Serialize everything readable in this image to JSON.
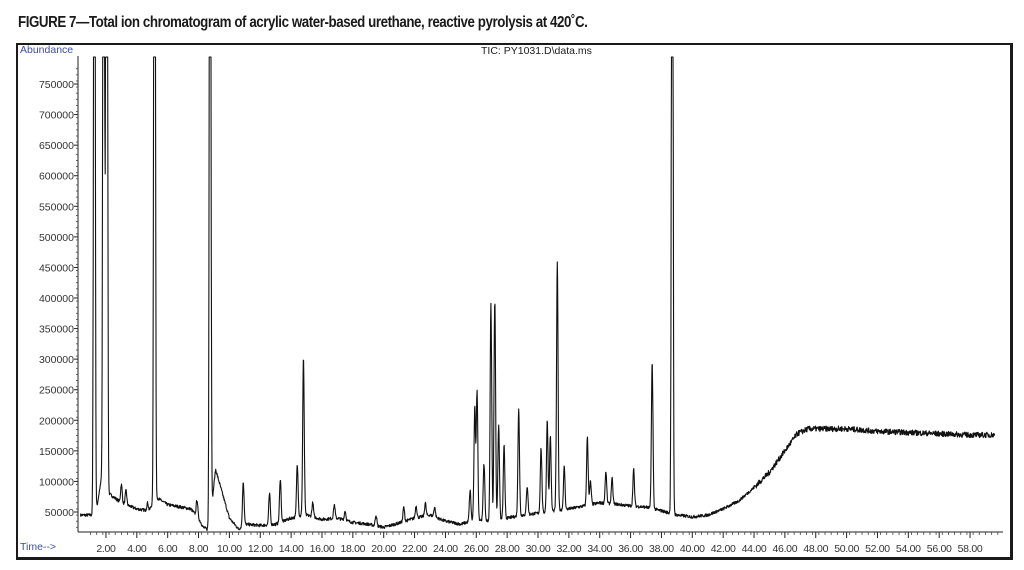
{
  "caption": "FIGURE 7—Total ion chromatogram of acrylic water-based urethane, reactive pyrolysis at 420˚C.",
  "chart_data": {
    "type": "line",
    "title": "TIC: PY1031.D\\data.ms",
    "xlabel": "Time-->",
    "ylabel": "Abundance",
    "xlim": [
      0.0,
      60.0
    ],
    "ylim": [
      20000,
      790000
    ],
    "grid": false,
    "x_ticks": [
      "2.00",
      "4.00",
      "6.00",
      "8.00",
      "10.00",
      "12.00",
      "14.00",
      "16.00",
      "18.00",
      "20.00",
      "22.00",
      "24.00",
      "26.00",
      "28.00",
      "30.00",
      "32.00",
      "34.00",
      "36.00",
      "38.00",
      "40.00",
      "42.00",
      "44.00",
      "46.00",
      "48.00",
      "50.00",
      "52.00",
      "54.00",
      "56.00",
      "58.00"
    ],
    "y_ticks": [
      "50000",
      "100000",
      "150000",
      "200000",
      "250000",
      "300000",
      "350000",
      "400000",
      "450000",
      "500000",
      "550000",
      "600000",
      "650000",
      "700000",
      "750000"
    ],
    "baseline": [
      [
        1.2,
        45000
      ],
      [
        1.3,
        40000
      ],
      [
        1.8,
        120000
      ],
      [
        2.2,
        80000
      ],
      [
        3.0,
        65000
      ],
      [
        4.0,
        55000
      ],
      [
        4.8,
        52000
      ],
      [
        5.2,
        75000
      ],
      [
        6.0,
        62000
      ],
      [
        7.5,
        55000
      ],
      [
        8.0,
        40000
      ],
      [
        8.3,
        25000
      ],
      [
        8.7,
        20000
      ],
      [
        9.1,
        120000
      ],
      [
        10.0,
        40000
      ],
      [
        10.6,
        22000
      ],
      [
        11.0,
        30000
      ],
      [
        12.0,
        28000
      ],
      [
        13.0,
        30000
      ],
      [
        14.0,
        40000
      ],
      [
        15.0,
        45000
      ],
      [
        16.0,
        38000
      ],
      [
        17.0,
        40000
      ],
      [
        18.0,
        33000
      ],
      [
        19.0,
        30000
      ],
      [
        20.0,
        25000
      ],
      [
        21.0,
        32000
      ],
      [
        22.0,
        40000
      ],
      [
        23.0,
        45000
      ],
      [
        24.0,
        35000
      ],
      [
        25.0,
        30000
      ],
      [
        26.0,
        38000
      ],
      [
        27.0,
        35000
      ],
      [
        28.0,
        40000
      ],
      [
        29.0,
        45000
      ],
      [
        30.0,
        48000
      ],
      [
        31.0,
        52000
      ],
      [
        32.0,
        55000
      ],
      [
        33.0,
        60000
      ],
      [
        34.0,
        65000
      ],
      [
        35.0,
        63000
      ],
      [
        36.0,
        60000
      ],
      [
        37.0,
        58000
      ],
      [
        38.0,
        52000
      ],
      [
        39.0,
        45000
      ],
      [
        40.0,
        42000
      ],
      [
        41.0,
        45000
      ],
      [
        42.0,
        55000
      ],
      [
        43.0,
        68000
      ],
      [
        44.0,
        90000
      ],
      [
        45.0,
        115000
      ],
      [
        46.0,
        150000
      ],
      [
        46.8,
        178000
      ],
      [
        47.5,
        186000
      ],
      [
        50.0,
        186000
      ],
      [
        52.0,
        182000
      ],
      [
        54.0,
        180000
      ],
      [
        56.0,
        178000
      ],
      [
        58.0,
        176000
      ],
      [
        59.5,
        176000
      ]
    ],
    "peaks": [
      {
        "t": 1.25,
        "y": 790000,
        "label": "off-scale"
      },
      {
        "t": 1.85,
        "y": 790000,
        "label": "off-scale"
      },
      {
        "t": 2.05,
        "y": 790000,
        "label": "off-scale"
      },
      {
        "t": 2.0,
        "y": 360000
      },
      {
        "t": 3.0,
        "y": 95000
      },
      {
        "t": 3.3,
        "y": 85000
      },
      {
        "t": 4.7,
        "y": 65000
      },
      {
        "t": 5.15,
        "y": 790000,
        "label": "off-scale"
      },
      {
        "t": 7.9,
        "y": 70000
      },
      {
        "t": 8.75,
        "y": 790000,
        "label": "off-scale"
      },
      {
        "t": 10.9,
        "y": 100000
      },
      {
        "t": 12.6,
        "y": 80000
      },
      {
        "t": 13.3,
        "y": 105000
      },
      {
        "t": 14.4,
        "y": 128000
      },
      {
        "t": 14.8,
        "y": 303000
      },
      {
        "t": 15.4,
        "y": 65000
      },
      {
        "t": 16.8,
        "y": 62000
      },
      {
        "t": 17.5,
        "y": 52000
      },
      {
        "t": 19.5,
        "y": 45000
      },
      {
        "t": 21.3,
        "y": 58000
      },
      {
        "t": 22.1,
        "y": 60000
      },
      {
        "t": 22.7,
        "y": 65000
      },
      {
        "t": 23.3,
        "y": 58000
      },
      {
        "t": 25.6,
        "y": 85000
      },
      {
        "t": 25.9,
        "y": 220000
      },
      {
        "t": 26.05,
        "y": 245000
      },
      {
        "t": 26.5,
        "y": 130000
      },
      {
        "t": 26.95,
        "y": 390000
      },
      {
        "t": 27.2,
        "y": 395000
      },
      {
        "t": 27.45,
        "y": 190000
      },
      {
        "t": 27.8,
        "y": 160000
      },
      {
        "t": 28.75,
        "y": 220000
      },
      {
        "t": 29.3,
        "y": 92000
      },
      {
        "t": 30.2,
        "y": 155000
      },
      {
        "t": 30.6,
        "y": 200000
      },
      {
        "t": 30.8,
        "y": 175000
      },
      {
        "t": 31.25,
        "y": 460000
      },
      {
        "t": 31.7,
        "y": 125000
      },
      {
        "t": 33.2,
        "y": 173000
      },
      {
        "t": 33.4,
        "y": 100000
      },
      {
        "t": 34.4,
        "y": 115000
      },
      {
        "t": 34.8,
        "y": 105000
      },
      {
        "t": 36.2,
        "y": 120000
      },
      {
        "t": 37.4,
        "y": 295000
      },
      {
        "t": 38.7,
        "y": 790000,
        "label": "off-scale"
      }
    ]
  }
}
